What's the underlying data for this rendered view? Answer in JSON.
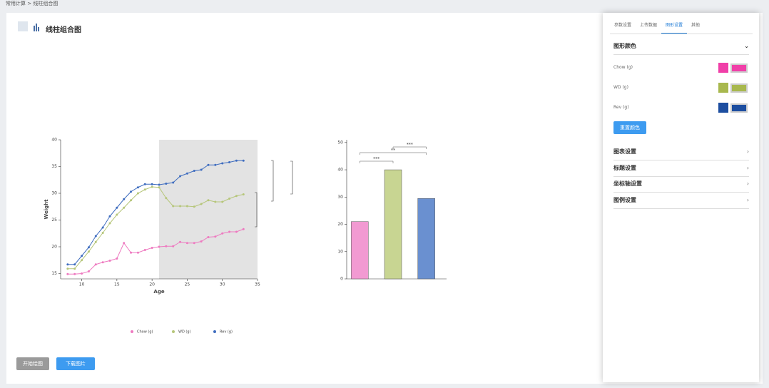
{
  "breadcrumb": [
    "常用计算",
    "线柱组合图"
  ],
  "header": {
    "title": "线柱组合图"
  },
  "chart_data": [
    {
      "type": "line",
      "x_label": "Age",
      "y_label": "Weight",
      "x": [
        8,
        9,
        10,
        11,
        12,
        13,
        14,
        15,
        16,
        17,
        18,
        19,
        20,
        21,
        22,
        23,
        24,
        25,
        26,
        27,
        28,
        29,
        30,
        31,
        32,
        33
      ],
      "series": [
        {
          "name": "Chow (g)",
          "color": "#ee7ac0",
          "values": [
            14.9,
            14.9,
            15,
            15.4,
            16.7,
            17.1,
            17.4,
            17.8,
            20.7,
            18.9,
            18.9,
            19.4,
            19.8,
            20,
            20.1,
            20.1,
            20.9,
            20.7,
            20.7,
            21,
            21.8,
            21.9,
            22.5,
            22.8,
            22.8,
            23.3
          ]
        },
        {
          "name": "WD (g)",
          "color": "#b6c67a",
          "values": [
            15.9,
            15.9,
            17.5,
            19.1,
            20.9,
            22.6,
            24.4,
            26,
            27.3,
            28.7,
            30,
            30.7,
            31.2,
            31.1,
            29.1,
            27.6,
            27.6,
            27.6,
            27.5,
            28,
            28.7,
            28.4,
            28.4,
            29,
            29.5,
            29.8
          ]
        },
        {
          "name": "Rev (g)",
          "color": "#3f6dbf",
          "values": [
            16.7,
            16.7,
            18.3,
            19.9,
            22,
            23.6,
            25.7,
            27.3,
            28.9,
            30.3,
            31.1,
            31.7,
            31.7,
            31.6,
            31.8,
            32,
            33.2,
            33.7,
            34.2,
            34.4,
            35.3,
            35.3,
            35.6,
            35.8,
            36.1,
            36.1
          ]
        }
      ],
      "xlim": [
        7,
        35
      ],
      "ylim": [
        14,
        40
      ],
      "xticks": [
        10,
        15,
        20,
        25,
        30,
        35
      ],
      "yticks": [
        15,
        20,
        25,
        30,
        35,
        40
      ],
      "shaded_region": [
        21,
        35
      ],
      "shade_color": "#e3e3e3",
      "legend": "bottom"
    },
    {
      "type": "bar",
      "categories": [
        null,
        null,
        null
      ],
      "values": [
        21,
        40,
        29.5
      ],
      "colors": [
        "#f29ad2",
        "#c8d592",
        "#6a90d0"
      ],
      "ylim": [
        0,
        51
      ],
      "yticks": [
        0,
        10,
        20,
        30,
        40,
        50
      ],
      "annotations": [
        "***",
        "**",
        "***"
      ]
    }
  ],
  "buttons": [
    "开始绘图",
    "下载图片"
  ],
  "panel": {
    "tabs": [
      "参数设置",
      "上传数据",
      "图形设置",
      "其他"
    ],
    "section": "图形颜色",
    "colors": [
      {
        "label": "Chow (g)",
        "color": "#f03fa8"
      },
      {
        "label": "WD (g)",
        "color": "#a8b84e"
      },
      {
        "label": "Rev (g)",
        "color": "#1d4ea0"
      }
    ],
    "reset": "重置颜色",
    "sections": [
      "图表设置",
      "标题设置",
      "坐标轴设置",
      "图例设置"
    ]
  }
}
